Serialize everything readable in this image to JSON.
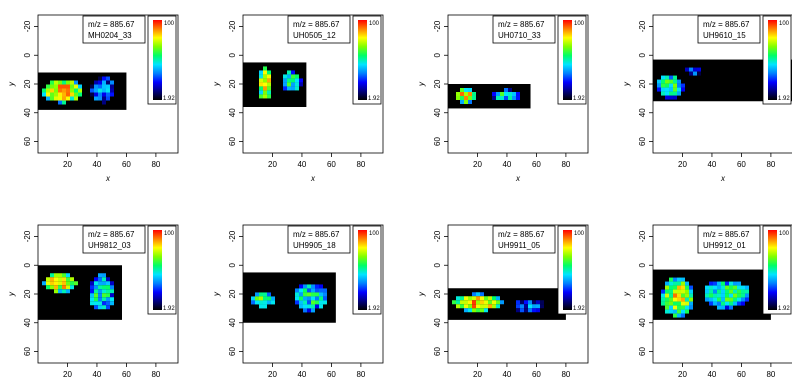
{
  "chart_data": {
    "type": "heatmap",
    "grid": false,
    "legend_position": "top-right",
    "colorbar": {
      "max_label": "100",
      "min_label": "1.92",
      "colors": [
        "#ff0000",
        "#ff8000",
        "#ffff00",
        "#80ff00",
        "#00ff66",
        "#00e5ff",
        "#0080ff",
        "#0000ff",
        "#000080",
        "#000000"
      ]
    },
    "shared": {
      "xlabel": "x",
      "ylabel": "y",
      "xticks": [
        20,
        40,
        60,
        80
      ],
      "yticks": [
        -20,
        0,
        20,
        40,
        60
      ],
      "xlim": [
        0,
        95
      ],
      "ylim": [
        68,
        -28
      ]
    },
    "panels": [
      {
        "title_line1": "m/z = 885.67",
        "title_line2": "MH0204_33",
        "image_extent": {
          "x": [
            0,
            60
          ],
          "y": [
            12,
            38
          ]
        },
        "blobs": [
          {
            "cx": 17,
            "cy": 25,
            "rx": 14,
            "ry": 8,
            "peak": 0.85
          },
          {
            "cx": 44,
            "cy": 24,
            "rx": 8,
            "ry": 9,
            "peak": 0.35
          }
        ]
      },
      {
        "title_line1": "m/z = 885.67",
        "title_line2": "UH0505_12",
        "image_extent": {
          "x": [
            0,
            43
          ],
          "y": [
            5,
            36
          ]
        },
        "blobs": [
          {
            "cx": 15,
            "cy": 20,
            "rx": 5,
            "ry": 11,
            "peak": 0.8
          },
          {
            "cx": 33,
            "cy": 18,
            "rx": 7,
            "ry": 7,
            "peak": 0.55
          }
        ]
      },
      {
        "title_line1": "m/z = 885.67",
        "title_line2": "UH0710_33",
        "image_extent": {
          "x": [
            0,
            56
          ],
          "y": [
            20,
            37
          ]
        },
        "blobs": [
          {
            "cx": 12,
            "cy": 28,
            "rx": 8,
            "ry": 5,
            "peak": 0.8
          },
          {
            "cx": 40,
            "cy": 28,
            "rx": 10,
            "ry": 4,
            "peak": 0.5
          }
        ]
      },
      {
        "title_line1": "m/z = 885.67",
        "title_line2": "UH9610_15",
        "image_extent": {
          "x": [
            0,
            95
          ],
          "y": [
            3,
            32
          ]
        },
        "blobs": [
          {
            "cx": 12,
            "cy": 22,
            "rx": 9,
            "ry": 8,
            "peak": 0.55
          },
          {
            "cx": 28,
            "cy": 12,
            "rx": 6,
            "ry": 4,
            "peak": 0.25
          }
        ]
      },
      {
        "title_line1": "m/z = 885.67",
        "title_line2": "UH9812_03",
        "image_extent": {
          "x": [
            0,
            57
          ],
          "y": [
            0,
            38
          ]
        },
        "blobs": [
          {
            "cx": 15,
            "cy": 12,
            "rx": 11,
            "ry": 7,
            "peak": 0.85
          },
          {
            "cx": 43,
            "cy": 19,
            "rx": 9,
            "ry": 13,
            "peak": 0.5
          }
        ]
      },
      {
        "title_line1": "m/z = 885.67",
        "title_line2": "UH9905_18",
        "image_extent": {
          "x": [
            0,
            63
          ],
          "y": [
            5,
            40
          ]
        },
        "blobs": [
          {
            "cx": 14,
            "cy": 24,
            "rx": 9,
            "ry": 5,
            "peak": 0.6
          },
          {
            "cx": 46,
            "cy": 22,
            "rx": 12,
            "ry": 10,
            "peak": 0.5
          }
        ]
      },
      {
        "title_line1": "m/z = 885.67",
        "title_line2": "UH9911_05",
        "image_extent": {
          "x": [
            0,
            80
          ],
          "y": [
            16,
            38
          ]
        },
        "blobs": [
          {
            "cx": 20,
            "cy": 26,
            "rx": 17,
            "ry": 6,
            "peak": 0.85
          },
          {
            "cx": 55,
            "cy": 28,
            "rx": 10,
            "ry": 5,
            "peak": 0.3
          }
        ]
      },
      {
        "title_line1": "m/z = 885.67",
        "title_line2": "UH9912_01",
        "image_extent": {
          "x": [
            0,
            80
          ],
          "y": [
            3,
            38
          ]
        },
        "blobs": [
          {
            "cx": 17,
            "cy": 22,
            "rx": 11,
            "ry": 14,
            "peak": 0.75
          },
          {
            "cx": 50,
            "cy": 20,
            "rx": 16,
            "ry": 10,
            "peak": 0.55
          }
        ]
      }
    ]
  }
}
